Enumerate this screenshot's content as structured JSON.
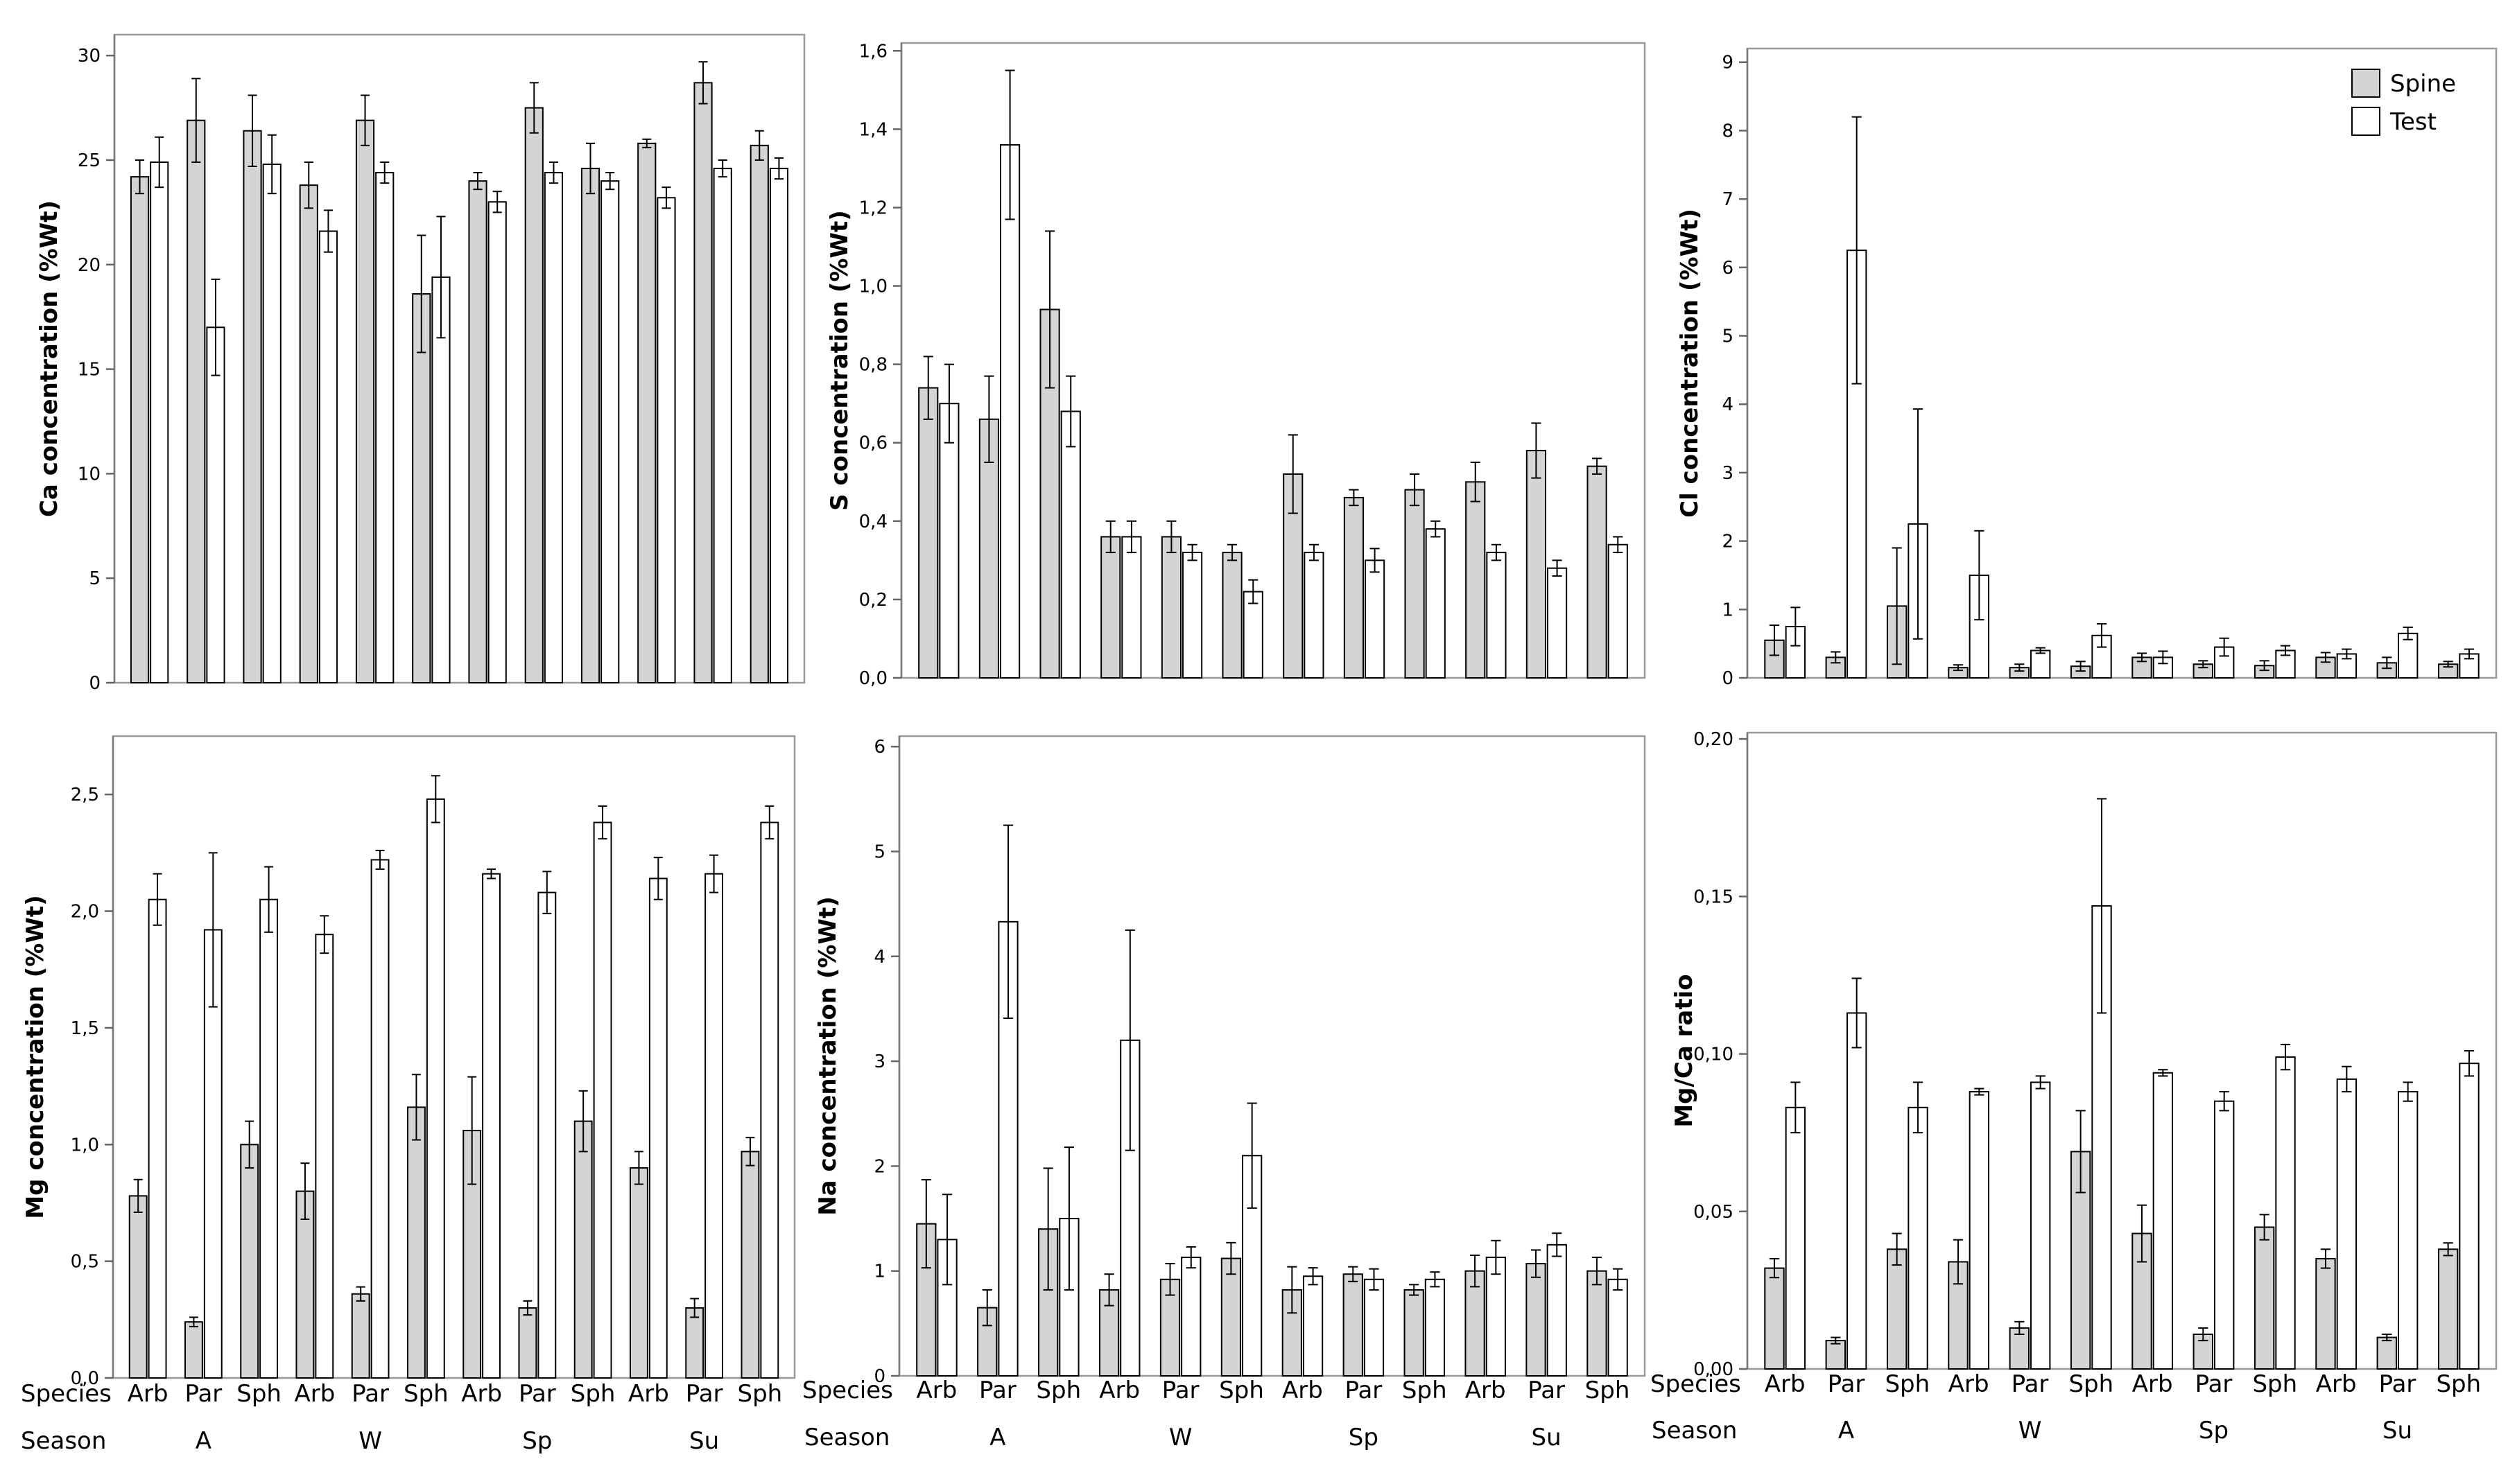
{
  "chart_data": [
    {
      "type": "bar",
      "ylabel": "Ca concentration (%Wt)",
      "ylim": [
        0,
        31
      ],
      "yticks": [
        "0",
        "5",
        "10",
        "15",
        "20",
        "25",
        "30"
      ],
      "ytick_values": [
        0,
        5,
        10,
        15,
        20,
        25,
        30
      ],
      "categories": [
        "Arb",
        "Par",
        "Sph",
        "Arb",
        "Par",
        "Sph",
        "Arb",
        "Par",
        "Sph",
        "Arb",
        "Par",
        "Sph"
      ],
      "seasons": [
        "A",
        "W",
        "Sp",
        "Su"
      ],
      "series": [
        {
          "name": "Spine",
          "values": [
            24.2,
            26.9,
            26.4,
            23.8,
            26.9,
            18.6,
            24.0,
            27.5,
            24.6,
            25.8,
            28.7,
            25.7
          ],
          "errors": [
            0.8,
            2.0,
            1.7,
            1.1,
            1.2,
            2.8,
            0.4,
            1.2,
            1.2,
            0.2,
            1.0,
            0.7
          ]
        },
        {
          "name": "Test",
          "values": [
            24.9,
            17.0,
            24.8,
            21.6,
            24.4,
            19.4,
            23.0,
            24.4,
            24.0,
            23.2,
            24.6,
            24.6
          ],
          "errors": [
            1.2,
            2.3,
            1.4,
            1.0,
            0.5,
            2.9,
            0.5,
            0.5,
            0.4,
            0.5,
            0.4,
            0.5
          ]
        }
      ]
    },
    {
      "type": "bar",
      "ylabel": "S  concentration (%Wt)",
      "ylim": [
        0,
        1.62
      ],
      "yticks": [
        "0,0",
        "0,2",
        "0,4",
        "0,6",
        "0,8",
        "1,0",
        "1,2",
        "1,4",
        "1,6"
      ],
      "ytick_values": [
        0,
        0.2,
        0.4,
        0.6,
        0.8,
        1.0,
        1.2,
        1.4,
        1.6
      ],
      "categories": [
        "Arb",
        "Par",
        "Sph",
        "Arb",
        "Par",
        "Sph",
        "Arb",
        "Par",
        "Sph",
        "Arb",
        "Par",
        "Sph"
      ],
      "seasons": [
        "A",
        "W",
        "Sp",
        "Su"
      ],
      "series": [
        {
          "name": "Spine",
          "values": [
            0.74,
            0.66,
            0.94,
            0.36,
            0.36,
            0.32,
            0.52,
            0.46,
            0.48,
            0.5,
            0.58,
            0.54
          ],
          "errors": [
            0.08,
            0.11,
            0.2,
            0.04,
            0.04,
            0.02,
            0.1,
            0.02,
            0.04,
            0.05,
            0.07,
            0.02
          ]
        },
        {
          "name": "Test",
          "values": [
            0.7,
            1.36,
            0.68,
            0.36,
            0.32,
            0.22,
            0.32,
            0.3,
            0.38,
            0.32,
            0.28,
            0.34
          ],
          "errors": [
            0.1,
            0.19,
            0.09,
            0.04,
            0.02,
            0.03,
            0.02,
            0.03,
            0.02,
            0.02,
            0.02,
            0.02
          ]
        }
      ]
    },
    {
      "type": "bar",
      "ylabel": "Cl  concentration (%Wt)",
      "ylim": [
        0,
        9.2
      ],
      "yticks": [
        "0",
        "1",
        "2",
        "3",
        "4",
        "5",
        "6",
        "7",
        "8",
        "9"
      ],
      "ytick_values": [
        0,
        1,
        2,
        3,
        4,
        5,
        6,
        7,
        8,
        9
      ],
      "categories": [
        "Arb",
        "Par",
        "Sph",
        "Arb",
        "Par",
        "Sph",
        "Arb",
        "Par",
        "Sph",
        "Arb",
        "Par",
        "Sph"
      ],
      "seasons": [
        "A",
        "W",
        "Sp",
        "Su"
      ],
      "legend": {
        "position": "top-right",
        "entries": [
          "Spine",
          "Test"
        ]
      },
      "series": [
        {
          "name": "Spine",
          "values": [
            0.55,
            0.3,
            1.05,
            0.15,
            0.15,
            0.17,
            0.3,
            0.2,
            0.18,
            0.3,
            0.22,
            0.2
          ],
          "errors": [
            0.22,
            0.08,
            0.85,
            0.04,
            0.05,
            0.07,
            0.06,
            0.05,
            0.07,
            0.07,
            0.08,
            0.04
          ]
        },
        {
          "name": "Test",
          "values": [
            0.75,
            6.25,
            2.25,
            1.5,
            0.4,
            0.62,
            0.3,
            0.45,
            0.4,
            0.35,
            0.65,
            0.35
          ],
          "errors": [
            0.28,
            1.95,
            1.68,
            0.65,
            0.04,
            0.17,
            0.09,
            0.13,
            0.07,
            0.07,
            0.09,
            0.07
          ]
        }
      ]
    },
    {
      "type": "bar",
      "ylabel": "Mg  concentration (%Wt)",
      "ylim": [
        0,
        2.75
      ],
      "yticks": [
        "0,0",
        "0,5",
        "1,0",
        "1,5",
        "2,0",
        "2,5"
      ],
      "ytick_values": [
        0,
        0.5,
        1.0,
        1.5,
        2.0,
        2.5
      ],
      "categories": [
        "Arb",
        "Par",
        "Sph",
        "Arb",
        "Par",
        "Sph",
        "Arb",
        "Par",
        "Sph",
        "Arb",
        "Par",
        "Sph"
      ],
      "seasons": [
        "A",
        "W",
        "Sp",
        "Su"
      ],
      "series": [
        {
          "name": "Spine",
          "values": [
            0.78,
            0.24,
            1.0,
            0.8,
            0.36,
            1.16,
            1.06,
            0.3,
            1.1,
            0.9,
            0.3,
            0.97
          ],
          "errors": [
            0.07,
            0.02,
            0.1,
            0.12,
            0.03,
            0.14,
            0.23,
            0.03,
            0.13,
            0.07,
            0.04,
            0.06
          ]
        },
        {
          "name": "Test",
          "values": [
            2.05,
            1.92,
            2.05,
            1.9,
            2.22,
            2.48,
            2.16,
            2.08,
            2.38,
            2.14,
            2.16,
            2.38
          ],
          "errors": [
            0.11,
            0.33,
            0.14,
            0.08,
            0.04,
            0.1,
            0.02,
            0.09,
            0.07,
            0.09,
            0.08,
            0.07
          ]
        }
      ]
    },
    {
      "type": "bar",
      "ylabel": "Na  concentration (%Wt)",
      "ylim": [
        0,
        6.1
      ],
      "yticks": [
        "0",
        "1",
        "2",
        "3",
        "4",
        "5",
        "6"
      ],
      "ytick_values": [
        0,
        1,
        2,
        3,
        4,
        5,
        6
      ],
      "categories": [
        "Arb",
        "Par",
        "Sph",
        "Arb",
        "Par",
        "Sph",
        "Arb",
        "Par",
        "Sph",
        "Arb",
        "Par",
        "Sph"
      ],
      "seasons": [
        "A",
        "W",
        "Sp",
        "Su"
      ],
      "series": [
        {
          "name": "Spine",
          "values": [
            1.45,
            0.65,
            1.4,
            0.82,
            0.92,
            1.12,
            0.82,
            0.97,
            0.82,
            1.0,
            1.07,
            1.0
          ],
          "errors": [
            0.42,
            0.17,
            0.58,
            0.15,
            0.15,
            0.15,
            0.22,
            0.07,
            0.05,
            0.15,
            0.13,
            0.13
          ]
        },
        {
          "name": "Test",
          "values": [
            1.3,
            4.33,
            1.5,
            3.2,
            1.13,
            2.1,
            0.95,
            0.92,
            0.92,
            1.13,
            1.25,
            0.92
          ],
          "errors": [
            0.43,
            0.92,
            0.68,
            1.05,
            0.1,
            0.5,
            0.08,
            0.1,
            0.07,
            0.16,
            0.11,
            0.1
          ]
        }
      ]
    },
    {
      "type": "bar",
      "ylabel": "Mg/Ca ratio",
      "ylim": [
        0,
        0.202
      ],
      "yticks": [
        "0,00",
        "0,05",
        "0,10",
        "0,15",
        "0,20"
      ],
      "ytick_values": [
        0,
        0.05,
        0.1,
        0.15,
        0.2
      ],
      "categories": [
        "Arb",
        "Par",
        "Sph",
        "Arb",
        "Par",
        "Sph",
        "Arb",
        "Par",
        "Sph",
        "Arb",
        "Par",
        "Sph"
      ],
      "seasons": [
        "A",
        "W",
        "Sp",
        "Su"
      ],
      "series": [
        {
          "name": "Spine",
          "values": [
            0.032,
            0.009,
            0.038,
            0.034,
            0.013,
            0.069,
            0.043,
            0.011,
            0.045,
            0.035,
            0.01,
            0.038
          ],
          "errors": [
            0.003,
            0.001,
            0.005,
            0.007,
            0.002,
            0.013,
            0.009,
            0.002,
            0.004,
            0.003,
            0.001,
            0.002
          ]
        },
        {
          "name": "Test",
          "values": [
            0.083,
            0.113,
            0.083,
            0.088,
            0.091,
            0.147,
            0.094,
            0.085,
            0.099,
            0.092,
            0.088,
            0.097
          ],
          "errors": [
            0.008,
            0.011,
            0.008,
            0.001,
            0.002,
            0.034,
            0.001,
            0.003,
            0.004,
            0.004,
            0.003,
            0.004
          ]
        }
      ]
    }
  ],
  "labels": {
    "species": "Species",
    "season": "Season"
  }
}
